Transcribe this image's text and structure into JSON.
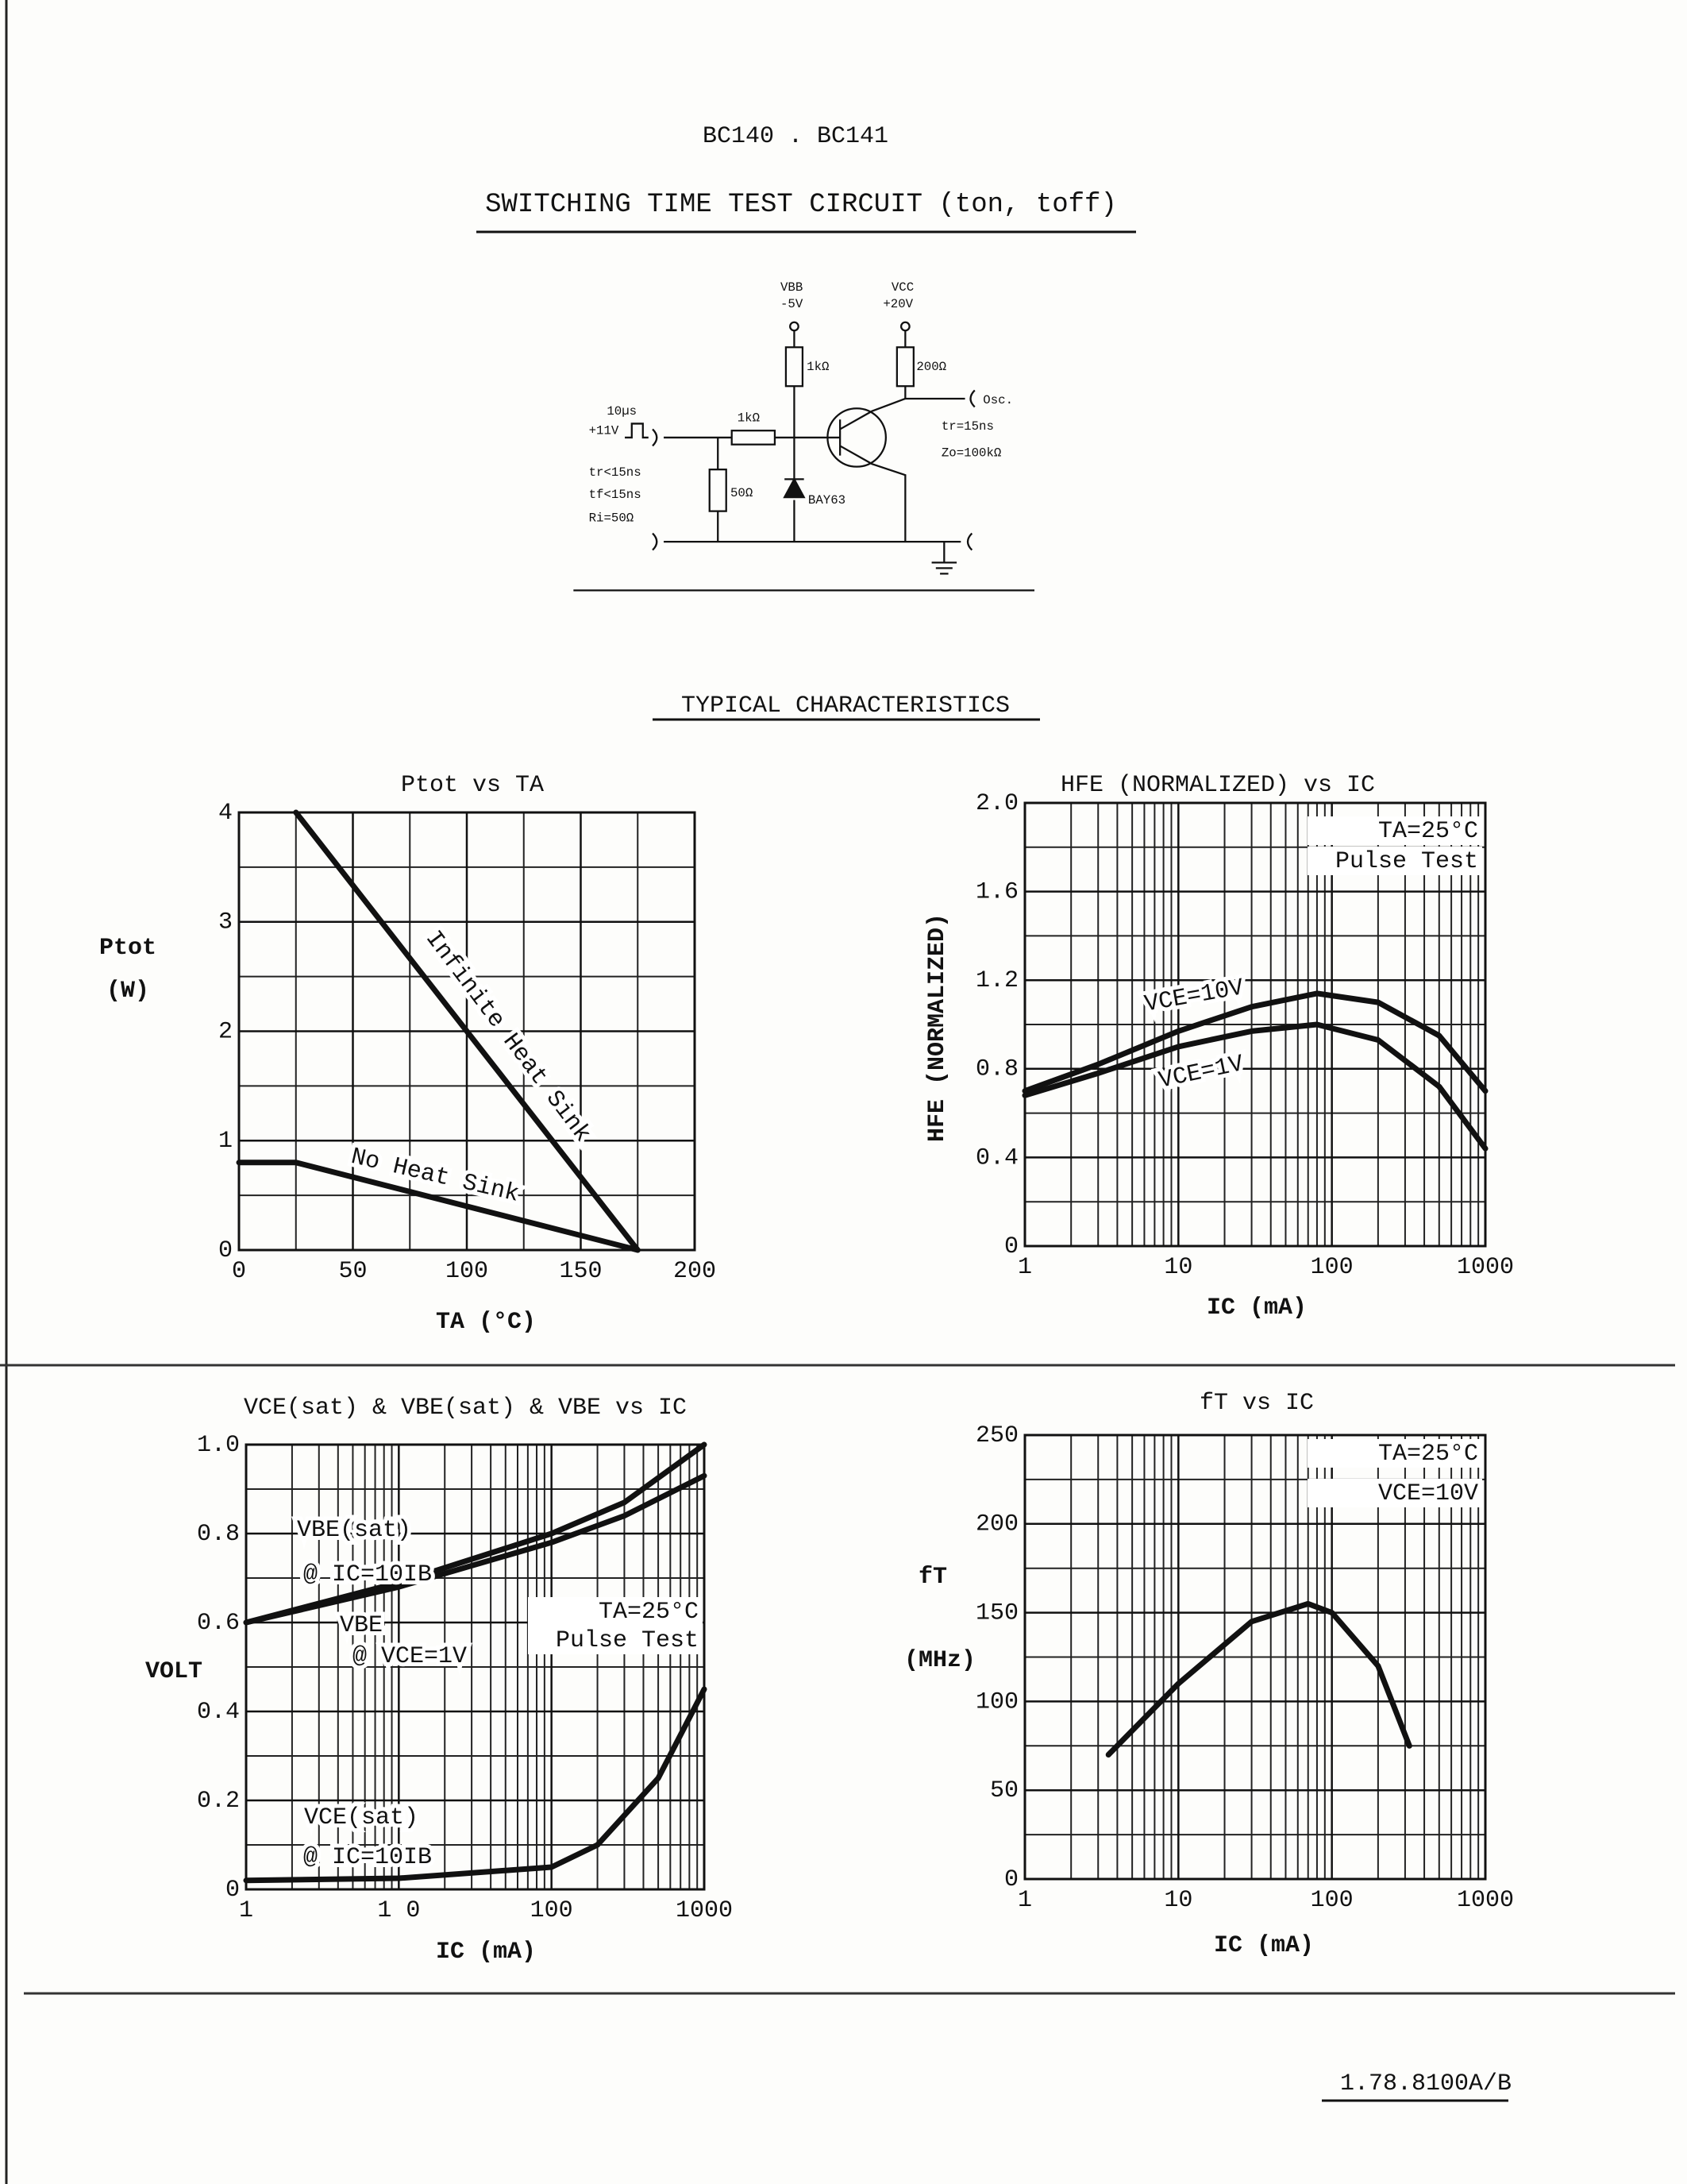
{
  "header": {
    "part": "BC140 . BC141",
    "circuit_title": "SWITCHING TIME TEST CIRCUIT (ton, toff)",
    "section_title": "TYPICAL CHARACTERISTICS"
  },
  "circuit": {
    "labels": [
      "VBB",
      "-5V",
      "VCC",
      "+20V",
      "1kΩ",
      "200Ω",
      "Osc.",
      "1kΩ",
      "tr=15ns",
      "Zo=100kΩ",
      "10µs",
      "+11V",
      "tr<15ns",
      "tf<15ns",
      "Ri=50Ω",
      "50Ω",
      "BAY63"
    ]
  },
  "chart_data": [
    {
      "type": "line",
      "title": "Ptot  vs  TA",
      "xlabel": "TA  (°C)",
      "ylabel": "Ptot",
      "yunit": "(W)",
      "xlim": [
        0,
        200
      ],
      "xticks": [
        0,
        50,
        100,
        150,
        200
      ],
      "ylim": [
        0,
        4
      ],
      "yticks": [
        0,
        1,
        2,
        3,
        4
      ],
      "grid": true,
      "minor_grid": true,
      "xlog": false,
      "series": [
        {
          "name": "Infinite Heat Sink",
          "color": "#111111",
          "x": [
            25,
            175
          ],
          "values": [
            4,
            0
          ]
        },
        {
          "name": "No Heat Sink",
          "color": "#111111",
          "x": [
            0,
            25,
            175
          ],
          "values": [
            0.8,
            0.8,
            0
          ]
        }
      ]
    },
    {
      "type": "line",
      "title": "HFE (NORMALIZED)  vs  IC",
      "xlabel": "IC (mA)",
      "ylabel": "HFE (NORMALIZED)",
      "xlim": [
        1,
        1000
      ],
      "xticks": [
        1,
        10,
        100,
        1000
      ],
      "ylim": [
        0,
        2
      ],
      "yticks": [
        0,
        0.4,
        0.8,
        1.2,
        1.6,
        {
          "value": 2,
          "label": "2.0"
        }
      ],
      "grid": true,
      "minor_grid": true,
      "xlog": true,
      "annotations": [
        "TA=25°C",
        "Pulse Test"
      ],
      "series": [
        {
          "name": "VCE=10V",
          "color": "#111111",
          "x": [
            1,
            3,
            10,
            30,
            80,
            200,
            500,
            1000
          ],
          "values": [
            0.7,
            0.82,
            0.97,
            1.08,
            1.14,
            1.1,
            0.95,
            0.7
          ]
        },
        {
          "name": "VCE=1V",
          "color": "#111111",
          "x": [
            1,
            3,
            10,
            30,
            80,
            200,
            500,
            1000
          ],
          "values": [
            0.68,
            0.78,
            0.9,
            0.97,
            1.0,
            0.93,
            0.72,
            0.44
          ]
        }
      ]
    },
    {
      "type": "line",
      "title": "VCE(sat) & VBE(sat) & VBE vs IC",
      "xlabel": "IC   (mA)",
      "ylabel": "VOLT",
      "xlim": [
        1,
        1000
      ],
      "xticks": [
        1,
        {
          "value": 10,
          "label": "1 0"
        },
        100,
        1000
      ],
      "ylim": [
        0,
        1
      ],
      "yticks": [
        0,
        0.2,
        0.4,
        0.6,
        0.8,
        {
          "value": 1,
          "label": "1.0"
        }
      ],
      "grid": true,
      "minor_grid": true,
      "xlog": true,
      "annotations": [
        "TA=25°C",
        "Pulse Test"
      ],
      "series": [
        {
          "name": "VBE(sat)",
          "condition": "@ IC=10IB",
          "color": "#111111",
          "x": [
            1,
            10,
            100,
            300,
            1000
          ],
          "values": [
            0.6,
            0.69,
            0.8,
            0.87,
            1.0
          ]
        },
        {
          "name": "VBE",
          "condition": "@ VCE=1V",
          "color": "#111111",
          "x": [
            1,
            10,
            100,
            300,
            1000
          ],
          "values": [
            0.6,
            0.68,
            0.78,
            0.84,
            0.93
          ]
        },
        {
          "name": "VCE(sat)",
          "condition": "@ IC=10IB",
          "color": "#111111",
          "x": [
            1,
            10,
            100,
            200,
            500,
            1000
          ],
          "values": [
            0.02,
            0.025,
            0.05,
            0.1,
            0.25,
            0.45
          ]
        }
      ]
    },
    {
      "type": "line",
      "title": "fT  vs  IC",
      "xlabel": "IC  (mA)",
      "ylabel": "fT",
      "yunit": "(MHz)",
      "xlim": [
        1,
        1000
      ],
      "xticks": [
        1,
        10,
        100,
        1000
      ],
      "ylim": [
        0,
        250
      ],
      "yticks": [
        0,
        50,
        100,
        150,
        200,
        250
      ],
      "grid": true,
      "minor_grid": true,
      "xlog": true,
      "annotations": [
        "TA=25°C",
        "VCE=10V"
      ],
      "series": [
        {
          "color": "#111111",
          "x": [
            3.5,
            10,
            30,
            70,
            100,
            200,
            320
          ],
          "values": [
            70,
            110,
            145,
            155,
            150,
            120,
            75
          ]
        }
      ]
    }
  ],
  "footer": {
    "code": "1.78.8100A/B"
  }
}
